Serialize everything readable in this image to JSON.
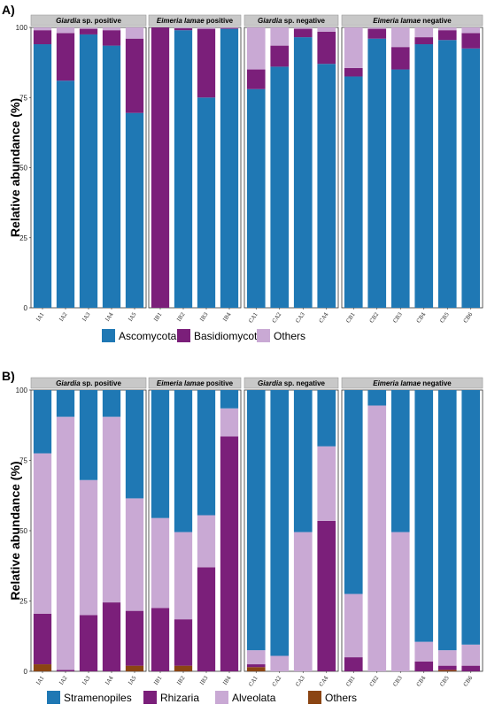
{
  "chart_data": [
    {
      "type": "bar",
      "panel_label": "A)",
      "ylabel": "Relative abundance (%)",
      "ylim": [
        0,
        100
      ],
      "yticks": [
        "0",
        "25",
        "50",
        "75",
        "100"
      ],
      "stacked": true,
      "legend_position": "bottom",
      "facets": [
        {
          "title_italic": "Giardia",
          "title_rest": " sp. positive",
          "categories": [
            "IA1",
            "IA2",
            "IA3",
            "IA4",
            "IA5"
          ]
        },
        {
          "title_italic": "Eimeria lamae",
          "title_rest": " positive",
          "categories": [
            "IB1",
            "IB2",
            "IB3",
            "IB4"
          ]
        },
        {
          "title_italic": "Giardia",
          "title_rest": " sp. negative",
          "categories": [
            "CA1",
            "CA2",
            "CA3",
            "CA4"
          ]
        },
        {
          "title_italic": "Eimeria lamae",
          "title_rest": " negative",
          "categories": [
            "CB1",
            "CB2",
            "CB3",
            "CB4",
            "CB5",
            "CB6"
          ]
        }
      ],
      "series": [
        {
          "name": "Ascomycota",
          "color": "#1f78b4",
          "values": [
            94,
            81,
            97.5,
            93.5,
            69.5,
            0,
            99,
            75,
            99.5,
            78,
            86,
            96.5,
            87,
            82.5,
            96,
            85,
            94,
            95.5,
            92.5
          ]
        },
        {
          "name": "Basidiomycota",
          "color": "#7b1f7a",
          "values": [
            5,
            17,
            2,
            5.5,
            26.5,
            100,
            0.7,
            24.5,
            0.3,
            7,
            7.5,
            3,
            11.5,
            3,
            3.5,
            8,
            2.5,
            3.5,
            5.5
          ]
        },
        {
          "name": "Others",
          "color": "#c9a9d4",
          "values": [
            1,
            2,
            0.5,
            1,
            4,
            0,
            0.3,
            0.5,
            0.2,
            15,
            6.5,
            0.5,
            1.5,
            14.5,
            0.5,
            7,
            3.5,
            1,
            2
          ]
        }
      ],
      "legend_order": [
        "Ascomycota",
        "Basidiomycota",
        "Others"
      ]
    },
    {
      "type": "bar",
      "panel_label": "B)",
      "ylabel": "Relative abundance (%)",
      "ylim": [
        0,
        100
      ],
      "yticks": [
        "0",
        "25",
        "50",
        "75",
        "100"
      ],
      "stacked": true,
      "legend_position": "bottom",
      "facets": [
        {
          "title_italic": "Giardia",
          "title_rest": " sp. positive",
          "categories": [
            "IA1",
            "IA2",
            "IA3",
            "IA4",
            "IA5"
          ]
        },
        {
          "title_italic": "Eimeria lamae",
          "title_rest": " positive",
          "categories": [
            "IB1",
            "IB2",
            "IB3",
            "IB4"
          ]
        },
        {
          "title_italic": "Giardia",
          "title_rest": " sp. negative",
          "categories": [
            "CA1",
            "CA2",
            "CA3",
            "CA4"
          ]
        },
        {
          "title_italic": "Eimeria lamae",
          "title_rest": " negative",
          "categories": [
            "CB1",
            "CB2",
            "CB3",
            "CB4",
            "CB5",
            "CB6"
          ]
        }
      ],
      "series": [
        {
          "name": "Others",
          "color": "#8b4513",
          "values": [
            2.5,
            0,
            0,
            0,
            2,
            0,
            2,
            0,
            0,
            1.5,
            0,
            0,
            0,
            0,
            0,
            0,
            0,
            0.5,
            0
          ]
        },
        {
          "name": "Rhizaria",
          "color": "#7b1f7a",
          "values": [
            18,
            0.5,
            20,
            24.5,
            19.5,
            22.5,
            16.5,
            37,
            83.5,
            1,
            0,
            0,
            53.5,
            5,
            0,
            0,
            3.5,
            1.5,
            2
          ]
        },
        {
          "name": "Alveolata",
          "color": "#c9a9d4",
          "values": [
            57,
            90,
            48,
            66,
            40,
            32,
            31,
            18.5,
            10,
            5,
            5.5,
            49.5,
            26.5,
            22.5,
            94.5,
            49.5,
            7,
            5.5,
            7.5
          ]
        },
        {
          "name": "Stramenopiles",
          "color": "#1f78b4",
          "values": [
            22.5,
            9.5,
            32,
            9.5,
            38.5,
            45.5,
            50.5,
            44.5,
            6.5,
            92.5,
            94.5,
            50.5,
            20,
            72.5,
            5.5,
            50.5,
            89.5,
            92.5,
            90.5
          ]
        }
      ],
      "legend_order": [
        "Stramenopiles",
        "Rhizaria",
        "Alveolata",
        "Others"
      ]
    }
  ]
}
